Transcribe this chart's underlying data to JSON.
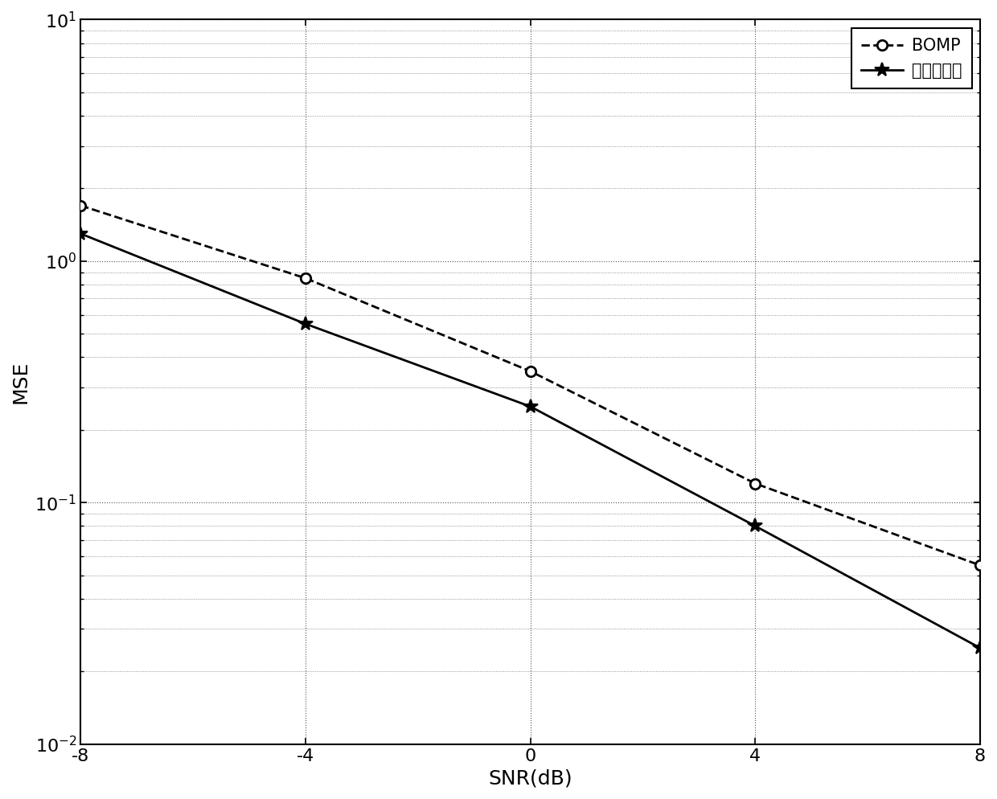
{
  "snr": [
    -8,
    -4,
    0,
    4,
    8
  ],
  "bomp_mse": [
    1.7,
    0.85,
    0.35,
    0.12,
    0.055
  ],
  "proposed_mse": [
    1.3,
    0.55,
    0.25,
    0.08,
    0.025
  ],
  "xlabel": "SNR(dB)",
  "ylabel": "MSE",
  "xlim": [
    -8,
    8
  ],
  "ylim": [
    0.01,
    10
  ],
  "bomp_label": "BOMP",
  "proposed_label": "本发明方法",
  "line_color": "#000000",
  "background_color": "#ffffff",
  "grid_color": "#555555",
  "legend_fontsize": 15,
  "axis_fontsize": 18,
  "tick_fontsize": 16
}
